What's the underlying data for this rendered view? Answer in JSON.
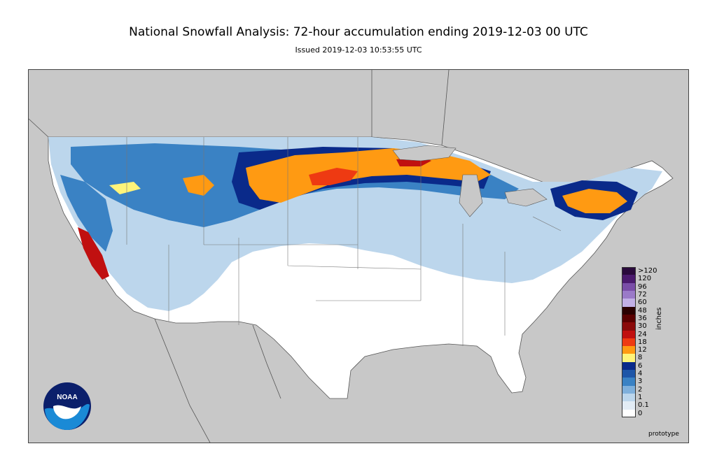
{
  "title": "National Snowfall Analysis: 72-hour accumulation ending 2019-12-03 00 UTC",
  "subtitle": "Issued 2019-12-03 10:53:55 UTC",
  "legend": {
    "title": "inches",
    "levels": [
      {
        "label": ">120",
        "color": "#2a0a3c"
      },
      {
        "label": "120",
        "color": "#4b1a6e"
      },
      {
        "label": "96",
        "color": "#7a4ea8"
      },
      {
        "label": "72",
        "color": "#9a7ac8"
      },
      {
        "label": "60",
        "color": "#c2b0e6"
      },
      {
        "label": "48",
        "color": "#2a0000"
      },
      {
        "label": "36",
        "color": "#5a0000"
      },
      {
        "label": "30",
        "color": "#8a0a0a"
      },
      {
        "label": "24",
        "color": "#c01010"
      },
      {
        "label": "18",
        "color": "#ee3a12"
      },
      {
        "label": "12",
        "color": "#ff9a12"
      },
      {
        "label": "8",
        "color": "#fff47a"
      },
      {
        "label": "6",
        "color": "#0a2a8a"
      },
      {
        "label": "4",
        "color": "#1e56a8"
      },
      {
        "label": "3",
        "color": "#3a82c4"
      },
      {
        "label": "2",
        "color": "#7fb0dc"
      },
      {
        "label": "1",
        "color": "#bcd6ec"
      },
      {
        "label": "0.1",
        "color": "#e2ecf5"
      },
      {
        "label": "0",
        "color": "#ffffff"
      }
    ]
  },
  "footnote": "prototype",
  "logo_text": "NOAA",
  "colors": {
    "ocean_land_outside": "#c8c8c8",
    "border": "#555555"
  }
}
